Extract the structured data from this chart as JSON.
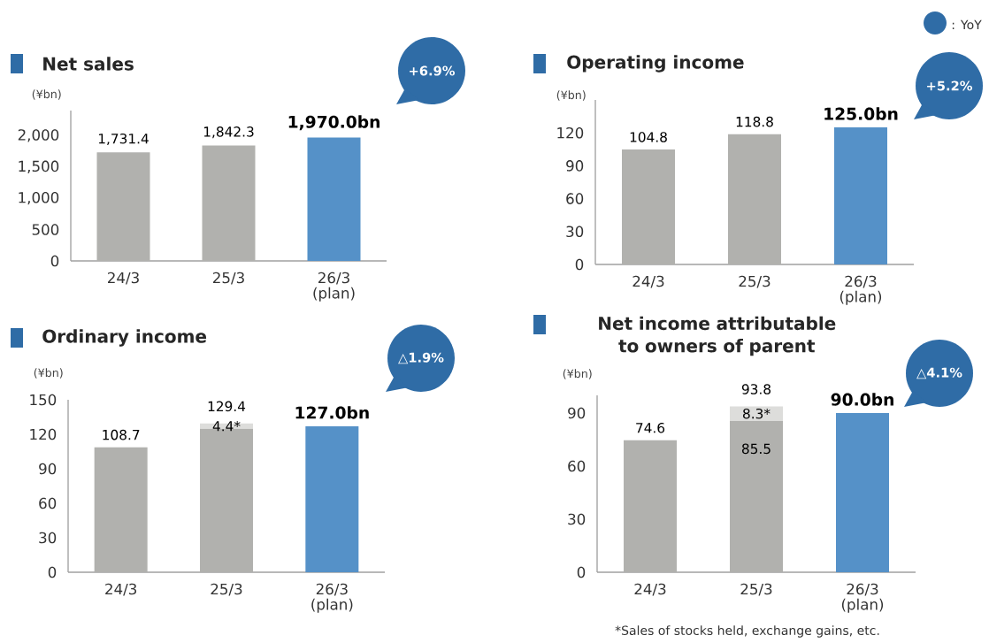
{
  "chart_data": [
    {
      "type": "bar",
      "title": "Net sales",
      "ylabel": "(¥bn)",
      "categories": [
        "24/3",
        "25/3",
        "26/3 (plan)"
      ],
      "ylim": [
        0,
        2400
      ],
      "yticks": [
        0,
        500,
        {
          "value": 1000,
          "label": "1,000"
        },
        {
          "value": 1500,
          "label": "1,500"
        },
        {
          "value": 2000,
          "label": "2,000"
        }
      ],
      "series": [
        {
          "colors": [
            "#b1b1ae",
            "#b1b1ae",
            "#5591c8"
          ],
          "values": [
            1731.4,
            1842.3,
            1970.0
          ],
          "value_labels": [
            "1,731.4",
            "1,842.3",
            "1,970.0bn"
          ]
        }
      ],
      "annotations": [
        "+6.9%"
      ]
    },
    {
      "type": "bar",
      "title": "Operating income",
      "ylabel": "(¥bn)",
      "categories": [
        "24/3",
        "25/3",
        "26/3 (plan)"
      ],
      "ylim": [
        0,
        150
      ],
      "yticks": [
        0,
        30,
        60,
        90,
        120
      ],
      "series": [
        {
          "colors": [
            "#b1b1ae",
            "#b1b1ae",
            "#5591c8"
          ],
          "values": [
            104.8,
            118.8,
            125.0
          ],
          "value_labels": [
            "104.8",
            "118.8",
            "125.0bn"
          ]
        }
      ],
      "annotations": [
        "+5.2%",
        ": YoY"
      ]
    },
    {
      "type": "bar",
      "title": "Ordinary income",
      "ylabel": "(¥bn)",
      "categories": [
        "24/3",
        "25/3",
        "26/3 (plan)"
      ],
      "ylim": [
        0,
        150
      ],
      "yticks": [
        0,
        30,
        60,
        90,
        120,
        150
      ],
      "stacked": true,
      "series": [
        {
          "colors": [
            "#b1b1ae",
            "#b1b1ae",
            "#5591c8"
          ],
          "values": [
            108.7,
            125.0,
            127.0
          ],
          "value_labels": [
            "108.7",
            null,
            "127.0bn"
          ]
        },
        {
          "color": "#dddddb",
          "values": [
            null,
            4.4,
            null
          ],
          "value_labels": [
            null,
            "4.4*",
            null
          ]
        }
      ],
      "totals": [
        null,
        "129.4",
        null
      ],
      "annotations": [
        "△1.9%"
      ]
    },
    {
      "type": "bar",
      "title": "Net income attributable to owners of parent",
      "ylabel": "(¥bn)",
      "categories": [
        "24/3",
        "25/3",
        "26/3 (plan)"
      ],
      "ylim": [
        0,
        100
      ],
      "yticks": [
        0,
        30,
        60,
        90
      ],
      "stacked": true,
      "series": [
        {
          "colors": [
            "#b1b1ae",
            "#b1b1ae",
            "#5591c8"
          ],
          "values": [
            74.6,
            85.5,
            90.0
          ],
          "value_labels": [
            "74.6",
            "85.5",
            "90.0bn"
          ]
        },
        {
          "color": "#dddddb",
          "values": [
            null,
            8.3,
            null
          ],
          "value_labels": [
            null,
            "8.3*",
            null
          ]
        }
      ],
      "totals": [
        null,
        "93.8",
        null
      ],
      "annotations": [
        "△4.1%",
        "*Sales of stocks held, exchange gains, etc."
      ]
    }
  ]
}
